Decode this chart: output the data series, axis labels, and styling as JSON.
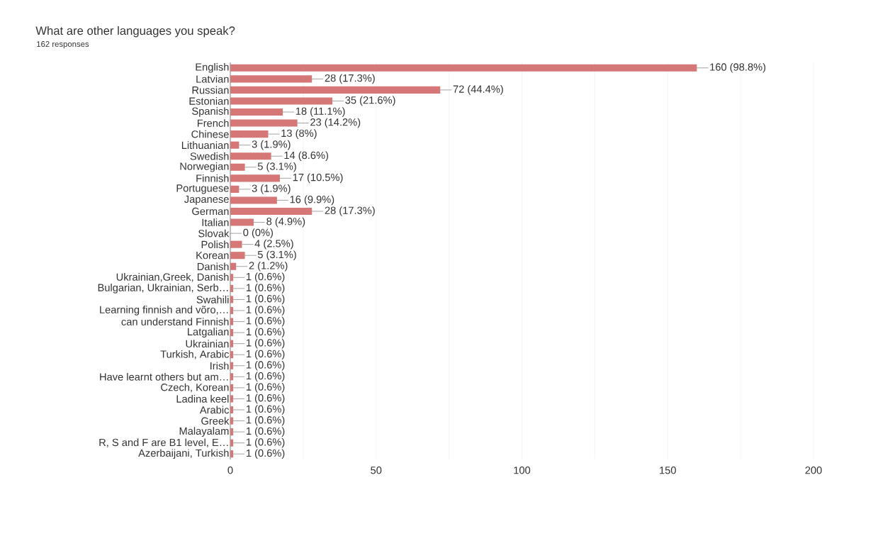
{
  "chart_data": {
    "type": "bar",
    "orientation": "horizontal",
    "title": "What are other languages you speak?",
    "subtitle": "162 responses",
    "categories": [
      "English",
      "Latvian",
      "Russian",
      "Estonian",
      "Spanish",
      "French",
      "Chinese",
      "Lithuanian",
      "Swedish",
      "Norwegian",
      "Finnish",
      "Portuguese",
      "Japanese",
      "German",
      "Italian",
      "Slovak",
      "Polish",
      "Korean",
      "Danish",
      "Ukrainian,Greek, Danish",
      "Bulgarian, Ukrainian, Serb…",
      "Swahili",
      "Learning finnish and võro,…",
      "can understand Finnish",
      "Latgalian",
      "Ukrainian",
      "Turkish, Arabic",
      "Irish",
      "Have learnt others but am…",
      "Czech, Korean",
      "Ladina keel",
      "Arabic",
      "Greek",
      "Malayalam",
      "R, S and F are B1 level, E…",
      "Azerbaijani, Turkish"
    ],
    "values": [
      160,
      28,
      72,
      35,
      18,
      23,
      13,
      3,
      14,
      5,
      17,
      3,
      16,
      28,
      8,
      0,
      4,
      5,
      2,
      1,
      1,
      1,
      1,
      1,
      1,
      1,
      1,
      1,
      1,
      1,
      1,
      1,
      1,
      1,
      1,
      1
    ],
    "value_labels": [
      "160 (98.8%)",
      "28 (17.3%)",
      "72 (44.4%)",
      "35 (21.6%)",
      "18 (11.1%)",
      "23 (14.2%)",
      "13 (8%)",
      "3 (1.9%)",
      "14 (8.6%)",
      "5 (3.1%)",
      "17 (10.5%)",
      "3 (1.9%)",
      "16 (9.9%)",
      "28 (17.3%)",
      "8 (4.9%)",
      "0 (0%)",
      "4 (2.5%)",
      "5 (3.1%)",
      "2 (1.2%)",
      "1 (0.6%)",
      "1 (0.6%)",
      "1 (0.6%)",
      "1 (0.6%)",
      "1 (0.6%)",
      "1 (0.6%)",
      "1 (0.6%)",
      "1 (0.6%)",
      "1 (0.6%)",
      "1 (0.6%)",
      "1 (0.6%)",
      "1 (0.6%)",
      "1 (0.6%)",
      "1 (0.6%)",
      "1 (0.6%)",
      "1 (0.6%)",
      "1 (0.6%)"
    ],
    "color": "#d47776",
    "xlim": [
      0,
      200
    ],
    "xticks": [
      0,
      {
        "value": 25,
        "label": null
      },
      50,
      {
        "value": 75,
        "label": null
      },
      100,
      {
        "value": 125,
        "label": null
      },
      150,
      {
        "value": 175,
        "label": null
      },
      200
    ],
    "grid": "x"
  }
}
